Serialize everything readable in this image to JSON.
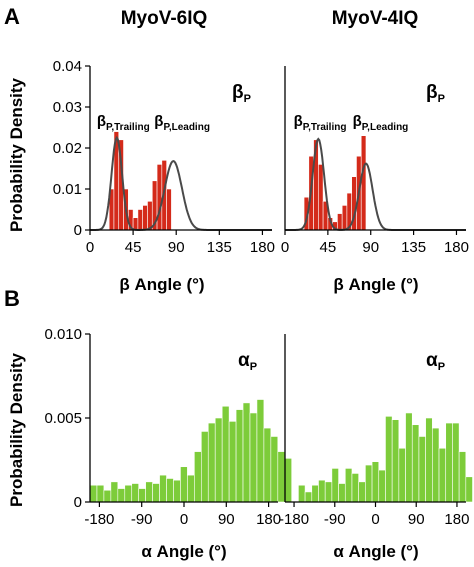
{
  "panel_a_letter": "A",
  "panel_b_letter": "B",
  "column_titles": [
    "MyoV-6IQ",
    "MyoV-4IQ"
  ],
  "colors": {
    "beta_bars": "#d42a1a",
    "alpha_bars": "#7dcc3a",
    "fit_curve": "#4a4a4a",
    "axis": "#000000"
  },
  "chart_data": [
    {
      "type": "bar",
      "panel": "A",
      "construct": "MyoV-6IQ",
      "ylabel": "Probability Density",
      "xlabel": "β Angle (°)",
      "corner_label": {
        "main": "β",
        "sub": "P"
      },
      "annotations": [
        {
          "main": "β",
          "sub": "P,Trailing",
          "x": 28
        },
        {
          "main": "β",
          "sub": "P,Leading",
          "x": 88
        }
      ],
      "xlim": [
        0,
        190
      ],
      "ylim": [
        0,
        0.04
      ],
      "xticks": [
        "0",
        "45",
        "90",
        "135",
        "180"
      ],
      "xtick_values": [
        0,
        45,
        90,
        135,
        180
      ],
      "yticks": [
        "0",
        "0.01",
        "0.02",
        "0.03",
        "0.04"
      ],
      "ytick_values": [
        0,
        0.01,
        0.02,
        0.03,
        0.04
      ],
      "bin_start": 10,
      "bin_width": 5,
      "values": [
        0.0,
        0.0,
        0.01,
        0.024,
        0.022,
        0.01,
        0.005,
        0.003,
        0.005,
        0.006,
        0.007,
        0.012,
        0.016,
        0.017,
        0.01,
        0.0,
        0.0,
        0.0
      ],
      "fit": [
        {
          "amp": 0.0225,
          "mu": 28,
          "sigma": 5.5
        },
        {
          "amp": 0.0168,
          "mu": 87,
          "sigma": 9
        }
      ]
    },
    {
      "type": "bar",
      "panel": "A",
      "construct": "MyoV-4IQ",
      "xlabel": "β Angle (°)",
      "corner_label": {
        "main": "β",
        "sub": "P"
      },
      "annotations": [
        {
          "main": "β",
          "sub": "P,Trailing",
          "x": 30
        },
        {
          "main": "β",
          "sub": "P,Leading",
          "x": 92
        }
      ],
      "xlim": [
        0,
        190
      ],
      "ylim": [
        0,
        0.04
      ],
      "xticks": [
        "0",
        "45",
        "90",
        "135",
        "180"
      ],
      "xtick_values": [
        0,
        45,
        90,
        135,
        180
      ],
      "bin_start": 20,
      "bin_width": 5,
      "values": [
        0.008,
        0.018,
        0.022,
        0.016,
        0.007,
        0.003,
        0.002,
        0.004,
        0.006,
        0.009,
        0.013,
        0.018,
        0.023,
        0.0
      ],
      "fit": [
        {
          "amp": 0.0222,
          "mu": 35,
          "sigma": 6
        },
        {
          "amp": 0.0162,
          "mu": 85,
          "sigma": 7
        }
      ]
    },
    {
      "type": "bar",
      "panel": "B",
      "construct": "MyoV-6IQ",
      "ylabel": "Probability Density",
      "xlabel": "α Angle (°)",
      "corner_label": {
        "main": "α",
        "sub": "P"
      },
      "xlim": [
        -200,
        200
      ],
      "ylim": [
        0,
        0.01
      ],
      "xticks": [
        "-180",
        "-90",
        "0",
        "90",
        "180"
      ],
      "xtick_values": [
        -180,
        -90,
        0,
        90,
        180
      ],
      "yticks": [
        "0",
        "0.005",
        "0.010"
      ],
      "ytick_values": [
        0,
        0.005,
        0.01
      ],
      "bin_start": -200,
      "bin_width": 14.8,
      "values": [
        0.001,
        0.001,
        0.0007,
        0.0012,
        0.0008,
        0.001,
        0.0011,
        0.0008,
        0.0012,
        0.0011,
        0.0016,
        0.0014,
        0.0013,
        0.0021,
        0.0016,
        0.003,
        0.0042,
        0.0047,
        0.005,
        0.0057,
        0.0048,
        0.0055,
        0.0059,
        0.0053,
        0.0061,
        0.0044,
        0.0039,
        0.003
      ]
    },
    {
      "type": "bar",
      "panel": "B",
      "construct": "MyoV-4IQ",
      "xlabel": "α Angle (°)",
      "corner_label": {
        "main": "α",
        "sub": "P"
      },
      "xlim": [
        -200,
        200
      ],
      "ylim": [
        0,
        0.01
      ],
      "xticks": [
        "-180",
        "-90",
        "0",
        "90",
        "180"
      ],
      "xtick_values": [
        -180,
        -90,
        0,
        90,
        180
      ],
      "bin_start": -200,
      "bin_width": 14.8,
      "values": [
        0.0026,
        0.0,
        0.001,
        0.0006,
        0.001,
        0.0013,
        0.0012,
        0.002,
        0.0011,
        0.002,
        0.0017,
        0.0012,
        0.0022,
        0.0024,
        0.0019,
        0.0051,
        0.0049,
        0.0032,
        0.0053,
        0.0046,
        0.0039,
        0.005,
        0.0044,
        0.0032,
        0.0047,
        0.0047,
        0.003,
        0.0015
      ]
    }
  ]
}
